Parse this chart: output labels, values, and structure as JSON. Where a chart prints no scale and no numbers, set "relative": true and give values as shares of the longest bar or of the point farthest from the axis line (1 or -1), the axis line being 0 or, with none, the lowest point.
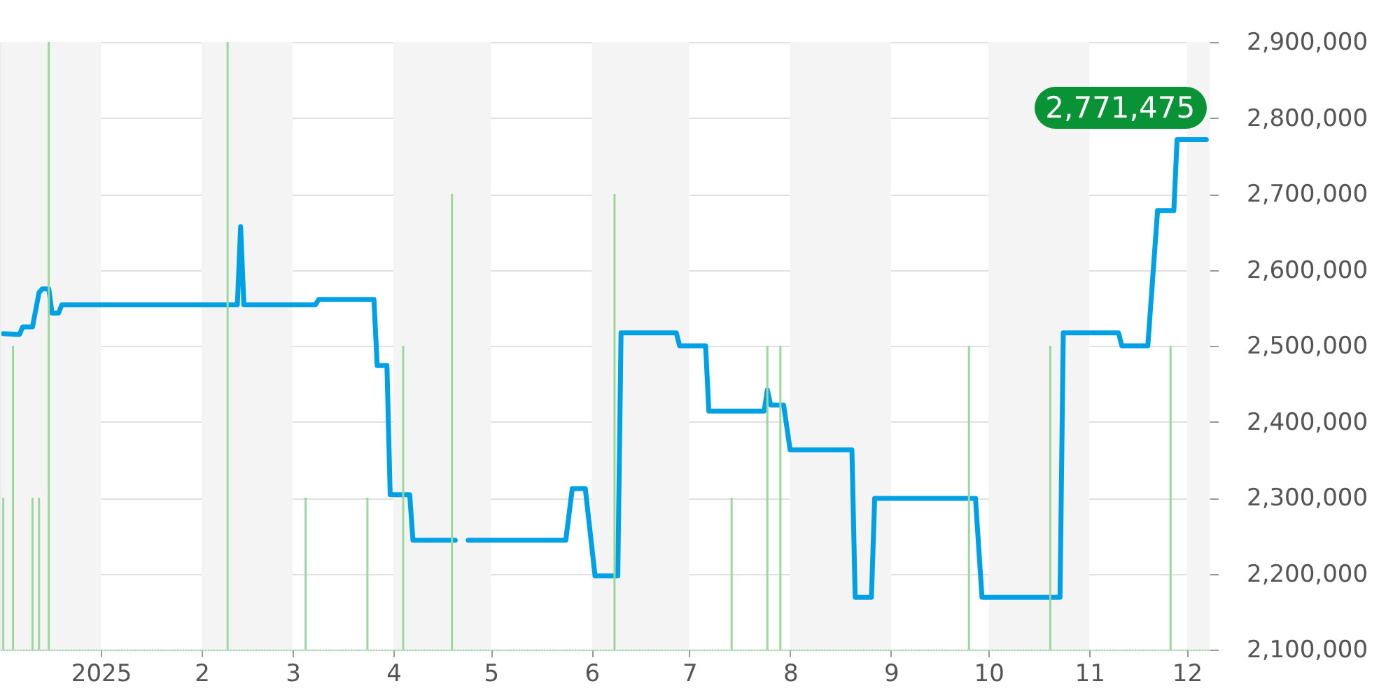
{
  "chart_data": [
    {
      "type": "line",
      "x": [
        "2024-12-02",
        "2024-12-07",
        "2024-12-08",
        "2024-12-11",
        "2024-12-13",
        "2024-12-14",
        "2024-12-16",
        "2024-12-17",
        "2024-12-19",
        "2024-12-20",
        "2025-02-12",
        "2025-02-13",
        "2025-02-14",
        "2025-03-08",
        "2025-03-09",
        "2025-03-26",
        "2025-03-27",
        "2025-03-30",
        "2025-03-31",
        "2025-04-06",
        "2025-04-07",
        "2025-04-20",
        "2025-04-22",
        "2025-04-24",
        "2025-05-24",
        "2025-05-26",
        "2025-05-30",
        "2025-06-02",
        "2025-06-09",
        "2025-06-10",
        "2025-06-27",
        "2025-06-28",
        "2025-07-06",
        "2025-07-07",
        "2025-07-24",
        "2025-07-25",
        "2025-07-26",
        "2025-07-30",
        "2025-08-01",
        "2025-08-20",
        "2025-08-21",
        "2025-08-26",
        "2025-08-27",
        "2025-09-27",
        "2025-09-29",
        "2025-10-23",
        "2025-10-24",
        "2025-11-10",
        "2025-11-11",
        "2025-11-19",
        "2025-11-22",
        "2025-11-27",
        "2025-11-28",
        "2025-12-07"
      ],
      "series": [
        {
          "color": "#00a0e4",
          "values": [
            2516000,
            2515000,
            2525000,
            2525000,
            2570000,
            2575000,
            2575000,
            2543000,
            2543000,
            2554000,
            2554000,
            2657000,
            2554000,
            2554000,
            2561000,
            2561000,
            2474000,
            2474000,
            2304000,
            2304000,
            2244000,
            2244000,
            null,
            2244000,
            2244000,
            2312000,
            2312000,
            2197000,
            2197000,
            2517000,
            2517000,
            2500000,
            2500000,
            2414000,
            2414000,
            2442000,
            2422000,
            2422000,
            2363000,
            2363000,
            2169000,
            2169000,
            2299000,
            2299000,
            2169000,
            2169000,
            2517000,
            2517000,
            2500000,
            2500000,
            2678000,
            2678000,
            2771475,
            2771475
          ]
        }
      ],
      "xlim": [
        "2024-12-01",
        "2025-12-08"
      ],
      "ylim": [
        2100000,
        2900000
      ],
      "yticks": [
        {
          "value": 2100000,
          "label": "2,100,000"
        },
        {
          "value": 2200000,
          "label": "2,200,000"
        },
        {
          "value": 2300000,
          "label": "2,300,000"
        },
        {
          "value": 2400000,
          "label": "2,400,000"
        },
        {
          "value": 2500000,
          "label": "2,500,000"
        },
        {
          "value": 2600000,
          "label": "2,600,000"
        },
        {
          "value": 2700000,
          "label": "2,700,000"
        },
        {
          "value": 2800000,
          "label": "2,800,000"
        },
        {
          "value": 2900000,
          "label": "2,900,000"
        }
      ],
      "bands": [
        {
          "axis": "x",
          "from": "2024-12-01",
          "to": "2025-01-01",
          "color": "#f4f4f4"
        },
        {
          "axis": "x",
          "from": "2025-02-01",
          "to": "2025-03-01",
          "color": "#f4f4f4"
        },
        {
          "axis": "x",
          "from": "2025-04-01",
          "to": "2025-05-01",
          "color": "#f4f4f4"
        },
        {
          "axis": "x",
          "from": "2025-06-01",
          "to": "2025-07-01",
          "color": "#f4f4f4"
        },
        {
          "axis": "x",
          "from": "2025-08-01",
          "to": "2025-09-01",
          "color": "#f4f4f4"
        },
        {
          "axis": "x",
          "from": "2025-10-01",
          "to": "2025-11-01",
          "color": "#f4f4f4"
        },
        {
          "axis": "x",
          "from": "2025-12-01",
          "to": "2025-12-08",
          "color": "#f4f4f4"
        }
      ],
      "annotations": [
        {
          "text": "2,771,475",
          "x": "2025-12-07",
          "y": 2771475
        }
      ],
      "grid": "y"
    },
    {
      "type": "bar",
      "relative": true,
      "tick_labels": "x",
      "x": [
        "2024-12-02",
        "2024-12-05",
        "2024-12-11",
        "2024-12-13",
        "2024-12-16",
        "2025-02-09",
        "2025-03-05",
        "2025-03-24",
        "2025-04-04",
        "2025-04-19",
        "2025-06-08",
        "2025-07-14",
        "2025-07-25",
        "2025-07-29",
        "2025-09-25",
        "2025-10-20",
        "2025-11-26"
      ],
      "series": [
        {
          "color": "#98d99b",
          "values": [
            0.25,
            0.5,
            0.25,
            0.25,
            1,
            1,
            0.25,
            0.25,
            0.5,
            0.75,
            0.75,
            0.25,
            0.5,
            0.5,
            0.5,
            0.5,
            0.5
          ]
        }
      ],
      "xlim": [
        "2024-12-01",
        "2025-12-08"
      ],
      "xticks": [
        {
          "value": "2025-01-01",
          "label": "2025"
        },
        {
          "value": "2025-02-01",
          "label": "2"
        },
        {
          "value": "2025-03-01",
          "label": "3"
        },
        {
          "value": "2025-04-01",
          "label": "4"
        },
        {
          "value": "2025-05-01",
          "label": "5"
        },
        {
          "value": "2025-06-01",
          "label": "6"
        },
        {
          "value": "2025-07-01",
          "label": "7"
        },
        {
          "value": "2025-08-01",
          "label": "8"
        },
        {
          "value": "2025-09-01",
          "label": "9"
        },
        {
          "value": "2025-10-01",
          "label": "10"
        },
        {
          "value": "2025-11-01",
          "label": "11"
        },
        {
          "value": "2025-12-01",
          "label": "12"
        }
      ]
    }
  ]
}
